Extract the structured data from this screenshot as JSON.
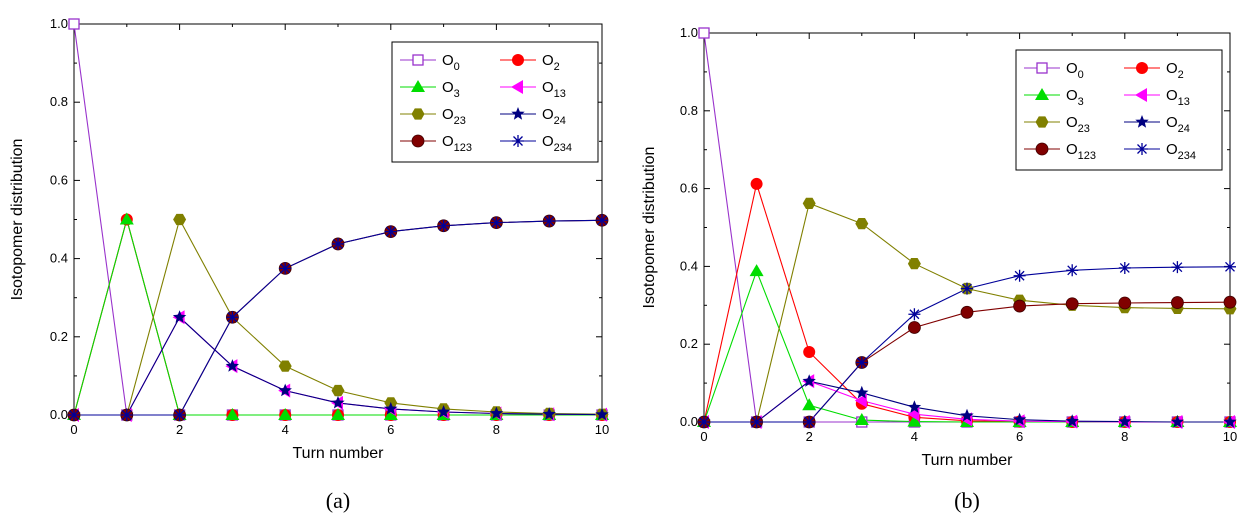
{
  "chart_data": [
    {
      "type": "line",
      "panel_label": "(a)",
      "xlabel": "Turn number",
      "ylabel": "Isotopomer distribution",
      "xlim": [
        0,
        10
      ],
      "ylim": [
        0,
        1.0
      ],
      "xticks": [
        "0",
        "2",
        "4",
        "6",
        "8",
        "10"
      ],
      "yticks": [
        "0.0",
        "0.2",
        "0.4",
        "0.6",
        "0.8",
        "1.0"
      ],
      "legend_position": "top-right",
      "x": [
        0,
        1,
        2,
        3,
        4,
        5,
        6,
        7,
        8,
        9,
        10
      ],
      "series": [
        {
          "name": "O",
          "sub": "0",
          "color": "#9933CC",
          "marker": "open-square",
          "values": [
            1,
            0,
            0,
            0,
            0,
            0,
            0,
            0,
            0,
            0,
            0
          ]
        },
        {
          "name": "O",
          "sub": "2",
          "color": "#FF0000",
          "marker": "circle",
          "values": [
            0,
            0.5,
            0,
            0,
            0,
            0,
            0,
            0,
            0,
            0,
            0
          ]
        },
        {
          "name": "O",
          "sub": "3",
          "color": "#00DD00",
          "marker": "triangle-up",
          "values": [
            0,
            0.5,
            0,
            0,
            0,
            0,
            0,
            0,
            0,
            0,
            0
          ]
        },
        {
          "name": "O",
          "sub": "13",
          "color": "#FF00FF",
          "marker": "triangle-left",
          "values": [
            0,
            0,
            0.25,
            0.125,
            0.0625,
            0.031,
            0.0156,
            0.0078,
            0.0039,
            0.002,
            0.001
          ]
        },
        {
          "name": "O",
          "sub": "23",
          "color": "#808000",
          "marker": "hexagon",
          "values": [
            0,
            0,
            0.5,
            0.25,
            0.125,
            0.0625,
            0.031,
            0.0156,
            0.0078,
            0.0039,
            0.002
          ]
        },
        {
          "name": "O",
          "sub": "24",
          "color": "#000080",
          "marker": "star",
          "values": [
            0,
            0,
            0.25,
            0.125,
            0.0625,
            0.031,
            0.0156,
            0.0078,
            0.0039,
            0.002,
            0.001
          ]
        },
        {
          "name": "O",
          "sub": "123",
          "color": "#800000",
          "marker": "sphere",
          "values": [
            0,
            0,
            0,
            0.25,
            0.375,
            0.4375,
            0.469,
            0.484,
            0.492,
            0.496,
            0.498
          ]
        },
        {
          "name": "O",
          "sub": "234",
          "color": "#000099",
          "marker": "asterisk",
          "values": [
            0,
            0,
            0,
            0.25,
            0.375,
            0.4375,
            0.469,
            0.484,
            0.492,
            0.496,
            0.498
          ]
        }
      ]
    },
    {
      "type": "line",
      "panel_label": "(b)",
      "xlabel": "Turn number",
      "ylabel": "Isotopomer distribution",
      "xlim": [
        0,
        10
      ],
      "ylim": [
        0,
        1.0
      ],
      "xticks": [
        "0",
        "2",
        "4",
        "6",
        "8",
        "10"
      ],
      "yticks": [
        "0.0",
        "0.2",
        "0.4",
        "0.6",
        "0.8",
        "1.0"
      ],
      "legend_position": "top-right",
      "x": [
        0,
        1,
        2,
        3,
        4,
        5,
        6,
        7,
        8,
        9,
        10
      ],
      "series": [
        {
          "name": "O",
          "sub": "0",
          "color": "#9933CC",
          "marker": "open-square",
          "values": [
            1,
            0,
            0,
            0,
            0,
            0,
            0,
            0,
            0,
            0,
            0
          ]
        },
        {
          "name": "O",
          "sub": "2",
          "color": "#FF0000",
          "marker": "circle",
          "values": [
            0,
            0.612,
            0.18,
            0.047,
            0.012,
            0.003,
            0.001,
            0,
            0,
            0,
            0
          ]
        },
        {
          "name": "O",
          "sub": "3",
          "color": "#00DD00",
          "marker": "triangle-up",
          "values": [
            0,
            0.388,
            0.043,
            0.005,
            0.001,
            0,
            0,
            0,
            0,
            0,
            0
          ]
        },
        {
          "name": "O",
          "sub": "13",
          "color": "#FF00FF",
          "marker": "triangle-left",
          "values": [
            0,
            0,
            0.105,
            0.055,
            0.02,
            0.007,
            0.002,
            0.001,
            0,
            0,
            0
          ]
        },
        {
          "name": "O",
          "sub": "23",
          "color": "#808000",
          "marker": "hexagon",
          "values": [
            0,
            0,
            0.562,
            0.51,
            0.407,
            0.343,
            0.313,
            0.3,
            0.294,
            0.292,
            0.291
          ]
        },
        {
          "name": "O",
          "sub": "24",
          "color": "#000080",
          "marker": "star",
          "values": [
            0,
            0,
            0.105,
            0.075,
            0.038,
            0.016,
            0.006,
            0.002,
            0.001,
            0,
            0
          ]
        },
        {
          "name": "O",
          "sub": "123",
          "color": "#800000",
          "marker": "sphere",
          "values": [
            0,
            0,
            0,
            0.153,
            0.243,
            0.282,
            0.298,
            0.304,
            0.306,
            0.307,
            0.308
          ]
        },
        {
          "name": "O",
          "sub": "234",
          "color": "#000099",
          "marker": "asterisk",
          "values": [
            0,
            0,
            0,
            0.153,
            0.277,
            0.343,
            0.376,
            0.39,
            0.396,
            0.398,
            0.399
          ]
        }
      ]
    }
  ]
}
